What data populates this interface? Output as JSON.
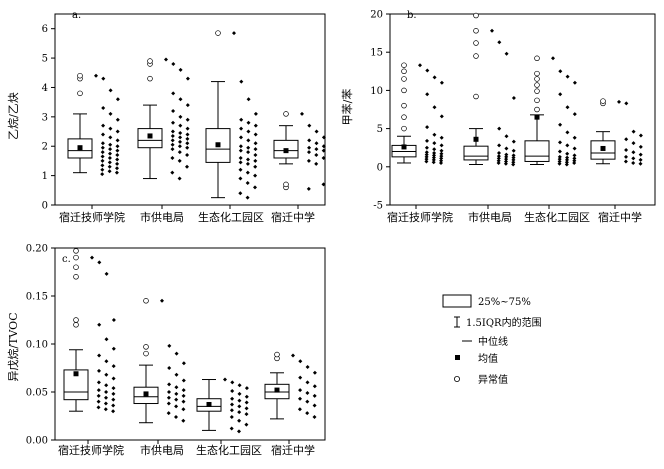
{
  "charts": [
    {
      "panel_label": "a.",
      "ylabel": "乙烷/乙炔",
      "categories": [
        "宿迁技师学院",
        "市供电局",
        "生态化工园区",
        "宿迁中学"
      ],
      "yticks": [
        0,
        1,
        2,
        3,
        4,
        5,
        6
      ],
      "ylim": [
        0,
        6.5
      ]
    },
    {
      "panel_label": "b.",
      "ylabel": "甲苯/苯",
      "categories": [
        "宿迁技师学院",
        "市供电局",
        "生态化工园区",
        "宿迁中学"
      ],
      "yticks": [
        -5,
        0,
        5,
        10,
        15,
        20
      ],
      "ylim": [
        -5,
        20
      ]
    },
    {
      "panel_label": "c.",
      "ylabel": "异戊烷/TVOC",
      "categories": [
        "宿迁技师学院",
        "市供电局",
        "生态化工园区",
        "宿迁中学"
      ],
      "yticks": [
        "0.00",
        "0.05",
        "0.10",
        "0.15",
        "0.20"
      ],
      "ylim": [
        0,
        0.2
      ]
    }
  ],
  "legend": {
    "items": [
      {
        "symbol": "box",
        "label": "25%~75%"
      },
      {
        "symbol": "whisker",
        "label": "1.5IQR内的范围"
      },
      {
        "symbol": "median-line",
        "label": "中位线"
      },
      {
        "symbol": "mean-square",
        "label": "均值"
      },
      {
        "symbol": "outlier-circle",
        "label": "异常值"
      }
    ]
  },
  "chart_data": [
    {
      "type": "box",
      "ylabel": "乙烷/乙炔",
      "categories": [
        "宿迁技师学院",
        "市供电局",
        "生态化工园区",
        "宿迁中学"
      ],
      "ylim": [
        0,
        6.5
      ],
      "boxes": [
        {
          "category": "宿迁技师学院",
          "whisker_low": 1.1,
          "q1": 1.6,
          "median": 1.85,
          "q3": 2.25,
          "whisker_high": 3.1,
          "mean": 1.95,
          "outliers": [
            3.8,
            4.3,
            4.4
          ],
          "points": [
            4.4,
            4.3,
            3.9,
            3.6,
            3.3,
            3.1,
            2.9,
            2.7,
            2.6,
            2.5,
            2.4,
            2.3,
            2.2,
            2.1,
            2.05,
            2.0,
            1.95,
            1.9,
            1.85,
            1.8,
            1.75,
            1.7,
            1.65,
            1.6,
            1.55,
            1.5,
            1.45,
            1.4,
            1.35,
            1.3,
            1.25,
            1.2,
            1.15,
            1.1,
            1.05
          ]
        },
        {
          "category": "市供电局",
          "whisker_low": 0.9,
          "q1": 1.95,
          "median": 2.2,
          "q3": 2.6,
          "whisker_high": 3.4,
          "mean": 2.35,
          "outliers": [
            4.3,
            4.8,
            4.9
          ],
          "points": [
            4.95,
            4.8,
            4.6,
            4.3,
            3.8,
            3.6,
            3.4,
            3.2,
            3.0,
            2.9,
            2.8,
            2.7,
            2.6,
            2.5,
            2.45,
            2.4,
            2.35,
            2.3,
            2.25,
            2.2,
            2.15,
            2.1,
            2.05,
            2.0,
            1.95,
            1.9,
            1.8,
            1.7,
            1.6,
            1.5,
            1.3,
            1.1,
            0.9
          ]
        },
        {
          "category": "生态化工园区",
          "whisker_low": 0.25,
          "q1": 1.45,
          "median": 1.9,
          "q3": 2.6,
          "whisker_high": 4.2,
          "mean": 2.05,
          "outliers": [
            5.85
          ],
          "points": [
            5.85,
            4.2,
            3.6,
            3.1,
            2.9,
            2.8,
            2.7,
            2.6,
            2.5,
            2.4,
            2.3,
            2.2,
            2.1,
            2.0,
            1.95,
            1.9,
            1.85,
            1.8,
            1.7,
            1.6,
            1.55,
            1.5,
            1.45,
            1.4,
            1.3,
            1.2,
            1.1,
            1.0,
            0.9,
            0.75,
            0.6,
            0.4,
            0.25
          ]
        },
        {
          "category": "宿迁中学",
          "whisker_low": 1.4,
          "q1": 1.6,
          "median": 1.85,
          "q3": 2.2,
          "whisker_high": 2.7,
          "mean": 1.85,
          "outliers": [
            0.6,
            0.7,
            3.1
          ],
          "points": [
            3.1,
            2.7,
            2.5,
            2.3,
            2.2,
            2.1,
            2.0,
            1.95,
            1.9,
            1.85,
            1.8,
            1.7,
            1.6,
            1.5,
            1.4,
            0.7,
            0.55
          ]
        }
      ]
    },
    {
      "type": "box",
      "ylabel": "甲苯/苯",
      "categories": [
        "宿迁技师学院",
        "市供电局",
        "生态化工园区",
        "宿迁中学"
      ],
      "ylim": [
        -5,
        20
      ],
      "boxes": [
        {
          "category": "宿迁技师学院",
          "whisker_low": 0.5,
          "q1": 1.3,
          "median": 2.0,
          "q3": 2.8,
          "whisker_high": 4.0,
          "mean": 2.6,
          "outliers": [
            5.0,
            6.5,
            8.0,
            10.0,
            11.5,
            12.5,
            13.3
          ],
          "points": [
            13.3,
            12.6,
            11.7,
            11.0,
            9.5,
            7.8,
            6.6,
            5.2,
            4.2,
            3.8,
            3.4,
            3.1,
            2.8,
            2.5,
            2.3,
            2.1,
            1.9,
            1.8,
            1.7,
            1.6,
            1.5,
            1.4,
            1.3,
            1.2,
            1.1,
            1.0,
            0.9,
            0.8,
            0.7,
            0.6,
            0.5
          ]
        },
        {
          "category": "市供电局",
          "whisker_low": 0.3,
          "q1": 0.9,
          "median": 1.4,
          "q3": 2.7,
          "whisker_high": 5.0,
          "mean": 3.6,
          "outliers": [
            9.2,
            14.5,
            16.2,
            17.8,
            19.8
          ],
          "points": [
            17.8,
            16.3,
            14.8,
            9.0,
            5.0,
            4.0,
            3.3,
            2.8,
            2.4,
            2.1,
            1.8,
            1.6,
            1.5,
            1.4,
            1.3,
            1.2,
            1.1,
            1.0,
            0.9,
            0.8,
            0.7,
            0.6,
            0.5,
            0.4,
            0.3
          ]
        },
        {
          "category": "生态化工园区",
          "whisker_low": 0.3,
          "q1": 0.7,
          "median": 1.4,
          "q3": 3.4,
          "whisker_high": 6.8,
          "mean": 6.5,
          "outliers": [
            7.5,
            8.7,
            9.9,
            10.7,
            11.5,
            12.2,
            14.2
          ],
          "points": [
            14.2,
            12.5,
            11.8,
            11.0,
            9.5,
            7.8,
            6.9,
            5.5,
            4.5,
            3.8,
            3.2,
            2.8,
            2.4,
            2.0,
            1.7,
            1.5,
            1.3,
            1.2,
            1.1,
            1.0,
            0.9,
            0.8,
            0.7,
            0.6,
            0.5,
            0.4,
            0.3
          ]
        },
        {
          "category": "宿迁中学",
          "whisker_low": 0.4,
          "q1": 1.0,
          "median": 1.8,
          "q3": 3.4,
          "whisker_high": 4.6,
          "mean": 2.4,
          "outliers": [
            8.3,
            8.6
          ],
          "points": [
            8.5,
            8.3,
            4.6,
            4.1,
            3.6,
            3.1,
            2.6,
            2.2,
            1.9,
            1.6,
            1.3,
            1.1,
            0.9,
            0.7,
            0.5,
            0.4
          ]
        }
      ]
    },
    {
      "type": "box",
      "ylabel": "异戊烷/TVOC",
      "categories": [
        "宿迁技师学院",
        "市供电局",
        "生态化工园区",
        "宿迁中学"
      ],
      "ylim": [
        0,
        0.2
      ],
      "boxes": [
        {
          "category": "宿迁技师学院",
          "whisker_low": 0.03,
          "q1": 0.042,
          "median": 0.05,
          "q3": 0.073,
          "whisker_high": 0.094,
          "mean": 0.069,
          "outliers": [
            0.12,
            0.125,
            0.17,
            0.18,
            0.19,
            0.197
          ],
          "points": [
            0.19,
            0.185,
            0.173,
            0.125,
            0.12,
            0.105,
            0.095,
            0.088,
            0.082,
            0.077,
            0.072,
            0.068,
            0.064,
            0.06,
            0.057,
            0.054,
            0.052,
            0.05,
            0.048,
            0.046,
            0.044,
            0.042,
            0.04,
            0.038,
            0.036,
            0.034,
            0.032,
            0.03
          ]
        },
        {
          "category": "市供电局",
          "whisker_low": 0.018,
          "q1": 0.038,
          "median": 0.045,
          "q3": 0.055,
          "whisker_high": 0.078,
          "mean": 0.048,
          "outliers": [
            0.09,
            0.097,
            0.145
          ],
          "points": [
            0.145,
            0.098,
            0.09,
            0.08,
            0.075,
            0.068,
            0.062,
            0.058,
            0.055,
            0.052,
            0.05,
            0.048,
            0.046,
            0.044,
            0.042,
            0.04,
            0.038,
            0.035,
            0.032,
            0.028,
            0.024,
            0.02
          ]
        },
        {
          "category": "生态化工园区",
          "whisker_low": 0.01,
          "q1": 0.03,
          "median": 0.035,
          "q3": 0.043,
          "whisker_high": 0.063,
          "mean": 0.037,
          "outliers": [],
          "points": [
            0.063,
            0.06,
            0.057,
            0.054,
            0.051,
            0.048,
            0.045,
            0.043,
            0.041,
            0.039,
            0.037,
            0.035,
            0.033,
            0.031,
            0.029,
            0.027,
            0.024,
            0.02,
            0.016,
            0.012,
            0.009
          ]
        },
        {
          "category": "宿迁中学",
          "whisker_low": 0.022,
          "q1": 0.043,
          "median": 0.05,
          "q3": 0.058,
          "whisker_high": 0.07,
          "mean": 0.052,
          "outliers": [
            0.085,
            0.089
          ],
          "points": [
            0.088,
            0.082,
            0.076,
            0.07,
            0.065,
            0.06,
            0.056,
            0.052,
            0.049,
            0.046,
            0.043,
            0.04,
            0.036,
            0.032,
            0.028,
            0.024
          ]
        }
      ]
    }
  ]
}
